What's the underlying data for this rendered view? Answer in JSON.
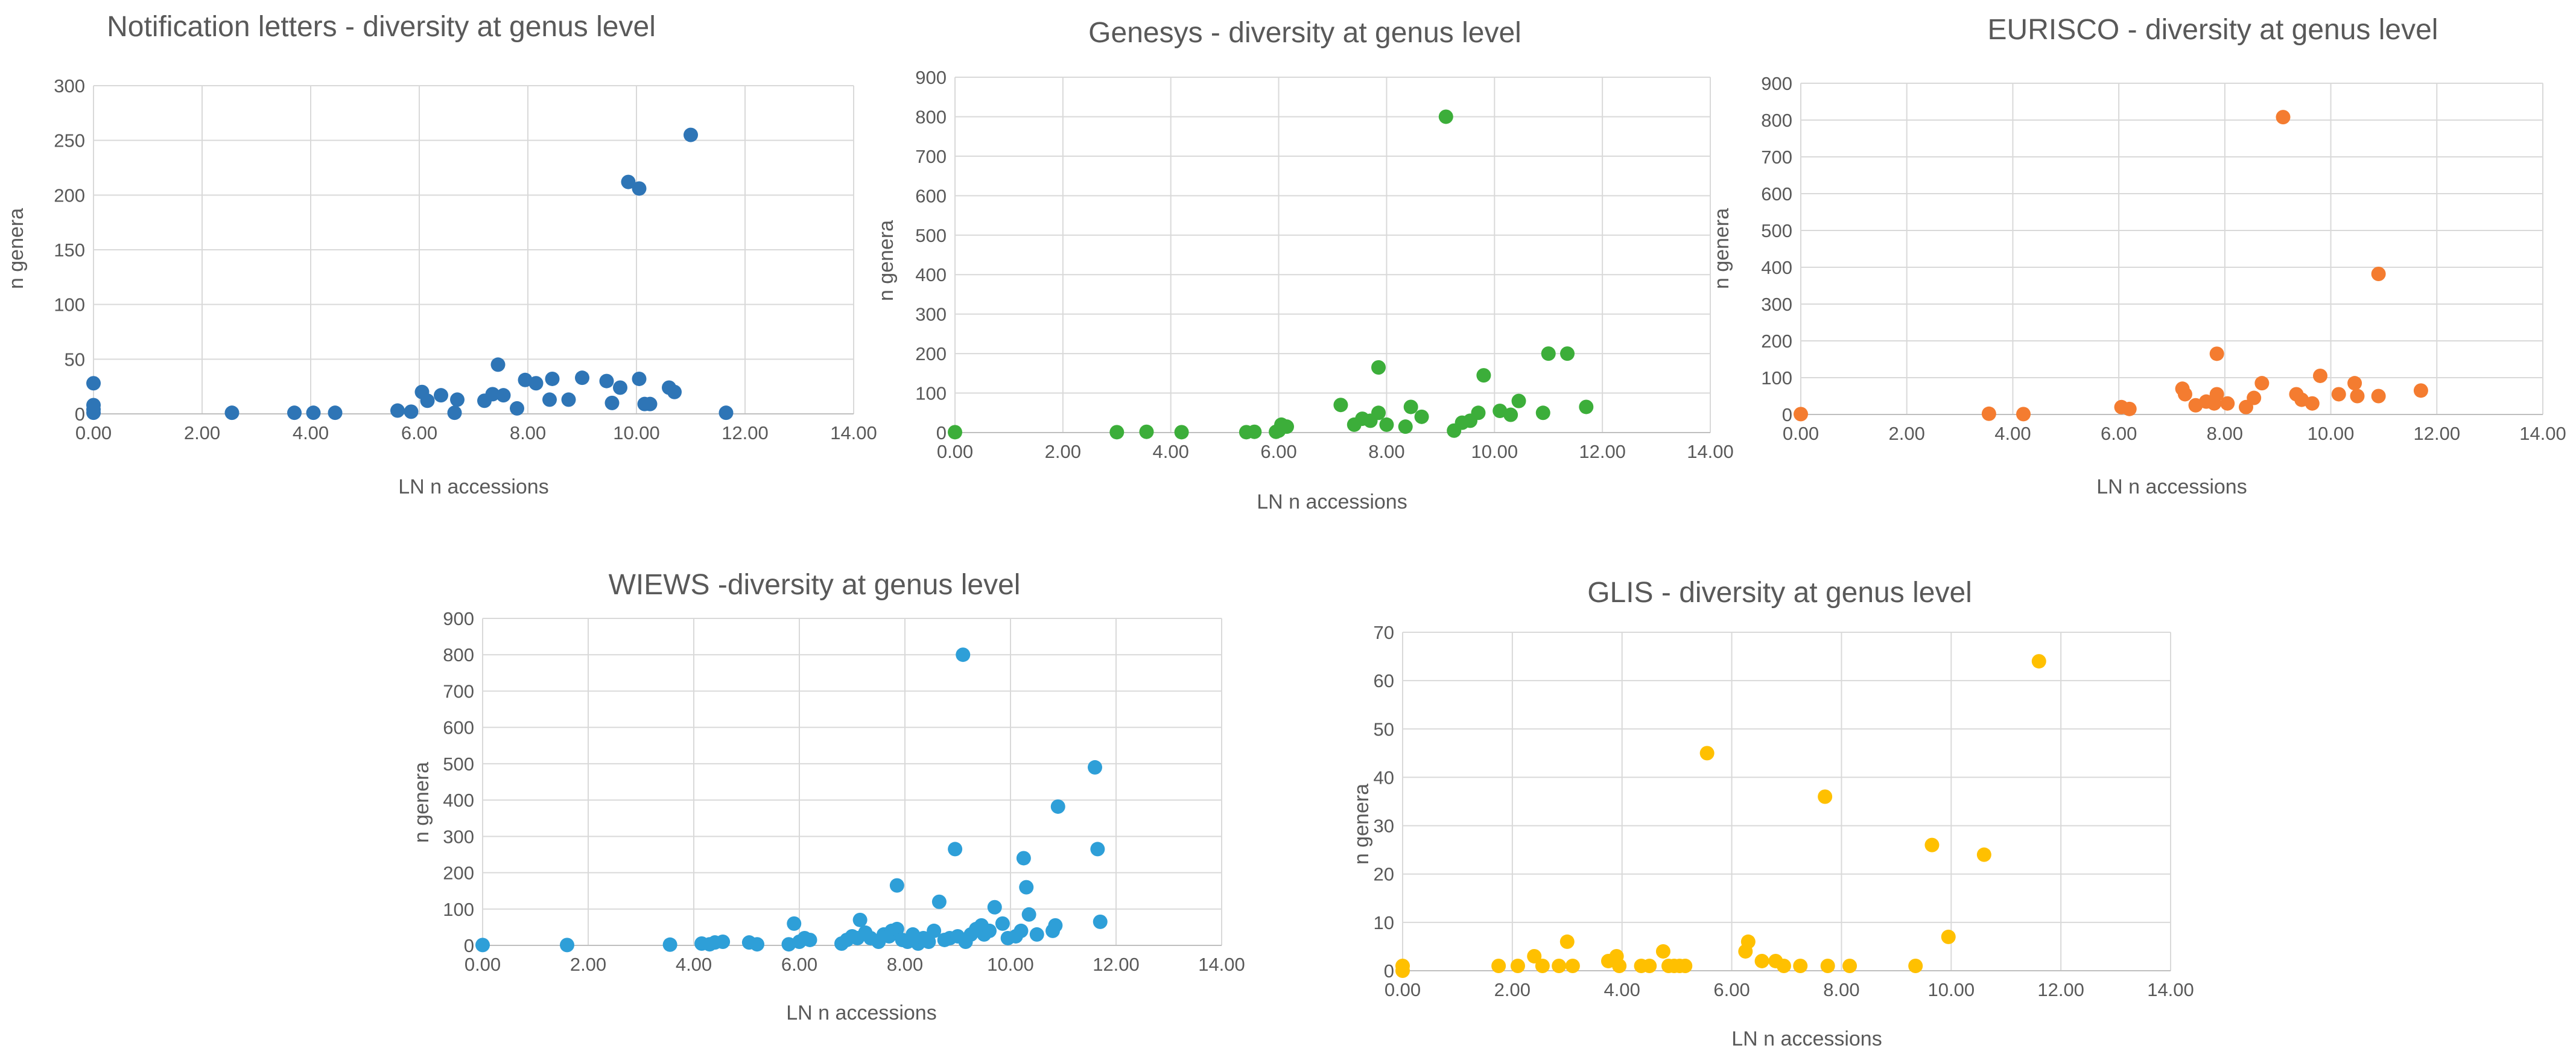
{
  "chart_data": [
    {
      "id": "notification",
      "type": "scatter",
      "title": "Notification letters - diversity at genus level",
      "xlabel": "LN n accessions",
      "ylabel": "n genera",
      "xlim": [
        0,
        14
      ],
      "ylim": [
        0,
        300
      ],
      "xticks": [
        0,
        2,
        4,
        6,
        8,
        10,
        12,
        14
      ],
      "yticks": [
        0,
        50,
        100,
        150,
        200,
        250,
        300
      ],
      "xtick_labels": [
        "0.00",
        "2.00",
        "4.00",
        "6.00",
        "8.00",
        "10.00",
        "12.00",
        "14.00"
      ],
      "ytick_labels": [
        "0",
        "50",
        "100",
        "150",
        "200",
        "250",
        "300"
      ],
      "grid": true,
      "color": "#2e75b6",
      "points": [
        [
          0.0,
          28
        ],
        [
          0.0,
          8
        ],
        [
          0.0,
          4
        ],
        [
          0.0,
          1
        ],
        [
          2.55,
          1
        ],
        [
          3.7,
          1
        ],
        [
          4.05,
          1
        ],
        [
          4.45,
          1
        ],
        [
          5.6,
          3
        ],
        [
          5.85,
          2
        ],
        [
          6.05,
          20
        ],
        [
          6.15,
          12
        ],
        [
          6.4,
          17
        ],
        [
          6.7,
          13
        ],
        [
          6.65,
          1
        ],
        [
          7.2,
          12
        ],
        [
          7.35,
          18
        ],
        [
          7.45,
          45
        ],
        [
          7.55,
          17
        ],
        [
          7.8,
          5
        ],
        [
          7.95,
          31
        ],
        [
          8.15,
          28
        ],
        [
          8.4,
          13
        ],
        [
          8.45,
          32
        ],
        [
          8.75,
          13
        ],
        [
          9.0,
          33
        ],
        [
          9.45,
          30
        ],
        [
          9.55,
          10
        ],
        [
          9.7,
          24
        ],
        [
          9.85,
          212
        ],
        [
          10.05,
          206
        ],
        [
          10.05,
          32
        ],
        [
          10.15,
          9
        ],
        [
          10.25,
          9
        ],
        [
          10.6,
          24
        ],
        [
          10.7,
          20
        ],
        [
          11.0,
          255
        ],
        [
          11.65,
          1
        ]
      ]
    },
    {
      "id": "genesys",
      "type": "scatter",
      "title": "Genesys - diversity at genus level",
      "xlabel": "LN n accessions",
      "ylabel": "n genera",
      "xlim": [
        0,
        14
      ],
      "ylim": [
        0,
        900
      ],
      "xticks": [
        0,
        2,
        4,
        6,
        8,
        10,
        12,
        14
      ],
      "yticks": [
        0,
        100,
        200,
        300,
        400,
        500,
        600,
        700,
        800,
        900
      ],
      "xtick_labels": [
        "0.00",
        "2.00",
        "4.00",
        "6.00",
        "8.00",
        "10.00",
        "12.00",
        "14.00"
      ],
      "ytick_labels": [
        "0",
        "100",
        "200",
        "300",
        "400",
        "500",
        "600",
        "700",
        "800",
        "900"
      ],
      "grid": true,
      "color": "#3cae3a",
      "points": [
        [
          0.0,
          1
        ],
        [
          3.0,
          1
        ],
        [
          3.55,
          2
        ],
        [
          4.2,
          1
        ],
        [
          5.4,
          1
        ],
        [
          5.55,
          2
        ],
        [
          5.95,
          2
        ],
        [
          6.05,
          20
        ],
        [
          6.15,
          15
        ],
        [
          6.0,
          5
        ],
        [
          7.15,
          70
        ],
        [
          7.4,
          20
        ],
        [
          7.55,
          35
        ],
        [
          7.7,
          30
        ],
        [
          7.85,
          50
        ],
        [
          7.85,
          165
        ],
        [
          8.0,
          20
        ],
        [
          8.35,
          15
        ],
        [
          8.45,
          65
        ],
        [
          8.65,
          40
        ],
        [
          9.1,
          800
        ],
        [
          9.25,
          5
        ],
        [
          9.4,
          25
        ],
        [
          9.55,
          30
        ],
        [
          9.7,
          50
        ],
        [
          9.8,
          145
        ],
        [
          10.1,
          55
        ],
        [
          10.3,
          45
        ],
        [
          10.45,
          80
        ],
        [
          10.9,
          50
        ],
        [
          11.0,
          200
        ],
        [
          11.35,
          200
        ],
        [
          11.7,
          65
        ]
      ]
    },
    {
      "id": "eurisco",
      "type": "scatter",
      "title": "EURISCO - diversity at genus level",
      "xlabel": "LN n accessions",
      "ylabel": "n genera",
      "xlim": [
        0,
        14
      ],
      "ylim": [
        0,
        900
      ],
      "xticks": [
        0,
        2,
        4,
        6,
        8,
        10,
        12,
        14
      ],
      "yticks": [
        0,
        100,
        200,
        300,
        400,
        500,
        600,
        700,
        800,
        900
      ],
      "xtick_labels": [
        "0.00",
        "2.00",
        "4.00",
        "6.00",
        "8.00",
        "10.00",
        "12.00",
        "14.00"
      ],
      "ytick_labels": [
        "0",
        "100",
        "200",
        "300",
        "400",
        "500",
        "600",
        "700",
        "800",
        "900"
      ],
      "grid": true,
      "color": "#f47c30",
      "points": [
        [
          0.0,
          1
        ],
        [
          3.55,
          2
        ],
        [
          4.2,
          1
        ],
        [
          6.05,
          20
        ],
        [
          6.2,
          15
        ],
        [
          7.2,
          70
        ],
        [
          7.25,
          55
        ],
        [
          7.45,
          25
        ],
        [
          7.65,
          35
        ],
        [
          7.8,
          30
        ],
        [
          7.85,
          55
        ],
        [
          7.85,
          165
        ],
        [
          8.05,
          30
        ],
        [
          8.4,
          20
        ],
        [
          8.55,
          45
        ],
        [
          8.7,
          85
        ],
        [
          9.1,
          808
        ],
        [
          9.35,
          55
        ],
        [
          9.45,
          40
        ],
        [
          9.65,
          30
        ],
        [
          9.8,
          105
        ],
        [
          10.15,
          55
        ],
        [
          10.45,
          85
        ],
        [
          10.5,
          50
        ],
        [
          10.9,
          382
        ],
        [
          10.9,
          50
        ],
        [
          11.7,
          65
        ]
      ]
    },
    {
      "id": "wiews",
      "type": "scatter",
      "title": "WIEWS -diversity at genus level",
      "xlabel": "LN n accessions",
      "ylabel": "n genera",
      "xlim": [
        0,
        14
      ],
      "ylim": [
        0,
        900
      ],
      "xticks": [
        0,
        2,
        4,
        6,
        8,
        10,
        12,
        14
      ],
      "yticks": [
        0,
        100,
        200,
        300,
        400,
        500,
        600,
        700,
        800,
        900
      ],
      "xtick_labels": [
        "0.00",
        "2.00",
        "4.00",
        "6.00",
        "8.00",
        "10.00",
        "12.00",
        "14.00"
      ],
      "ytick_labels": [
        "0",
        "100",
        "200",
        "300",
        "400",
        "500",
        "600",
        "700",
        "800",
        "900"
      ],
      "grid": true,
      "color": "#2e9fd8",
      "points": [
        [
          0.0,
          1
        ],
        [
          1.6,
          1
        ],
        [
          3.55,
          2
        ],
        [
          4.15,
          5
        ],
        [
          4.3,
          3
        ],
        [
          4.4,
          8
        ],
        [
          4.55,
          10
        ],
        [
          5.05,
          8
        ],
        [
          5.2,
          3
        ],
        [
          5.8,
          3
        ],
        [
          5.9,
          60
        ],
        [
          6.0,
          10
        ],
        [
          6.1,
          20
        ],
        [
          6.2,
          15
        ],
        [
          6.8,
          5
        ],
        [
          6.9,
          15
        ],
        [
          7.0,
          25
        ],
        [
          7.1,
          20
        ],
        [
          7.15,
          70
        ],
        [
          7.25,
          35
        ],
        [
          7.35,
          20
        ],
        [
          7.5,
          10
        ],
        [
          7.6,
          30
        ],
        [
          7.7,
          25
        ],
        [
          7.75,
          40
        ],
        [
          7.85,
          45
        ],
        [
          7.85,
          165
        ],
        [
          7.95,
          15
        ],
        [
          8.05,
          10
        ],
        [
          8.15,
          30
        ],
        [
          8.25,
          5
        ],
        [
          8.35,
          20
        ],
        [
          8.45,
          10
        ],
        [
          8.55,
          40
        ],
        [
          8.65,
          120
        ],
        [
          8.75,
          15
        ],
        [
          8.85,
          20
        ],
        [
          8.95,
          265
        ],
        [
          9.0,
          25
        ],
        [
          9.1,
          800
        ],
        [
          9.15,
          10
        ],
        [
          9.25,
          30
        ],
        [
          9.35,
          45
        ],
        [
          9.45,
          55
        ],
        [
          9.5,
          30
        ],
        [
          9.6,
          40
        ],
        [
          9.7,
          105
        ],
        [
          9.85,
          60
        ],
        [
          9.95,
          20
        ],
        [
          10.1,
          25
        ],
        [
          10.2,
          40
        ],
        [
          10.25,
          240
        ],
        [
          10.3,
          160
        ],
        [
          10.35,
          85
        ],
        [
          10.5,
          30
        ],
        [
          10.8,
          40
        ],
        [
          10.85,
          55
        ],
        [
          10.9,
          382
        ],
        [
          11.6,
          490
        ],
        [
          11.65,
          265
        ],
        [
          11.7,
          65
        ]
      ]
    },
    {
      "id": "glis",
      "type": "scatter",
      "title": "GLIS - diversity at genus level",
      "xlabel": "LN n accessions",
      "ylabel": "n genera",
      "xlim": [
        0,
        14
      ],
      "ylim": [
        0,
        70
      ],
      "xticks": [
        0,
        2,
        4,
        6,
        8,
        10,
        12,
        14
      ],
      "yticks": [
        0,
        10,
        20,
        30,
        40,
        50,
        60,
        70
      ],
      "xtick_labels": [
        "0.00",
        "2.00",
        "4.00",
        "6.00",
        "8.00",
        "10.00",
        "12.00",
        "14.00"
      ],
      "ytick_labels": [
        "0",
        "10",
        "20",
        "30",
        "40",
        "50",
        "60",
        "70"
      ],
      "grid": true,
      "color": "#ffc000",
      "points": [
        [
          0.0,
          1
        ],
        [
          0.0,
          0
        ],
        [
          1.75,
          1
        ],
        [
          2.1,
          1
        ],
        [
          2.4,
          3
        ],
        [
          2.55,
          1
        ],
        [
          2.85,
          1
        ],
        [
          3.0,
          6
        ],
        [
          3.1,
          1
        ],
        [
          3.75,
          2
        ],
        [
          3.9,
          3
        ],
        [
          3.95,
          1
        ],
        [
          4.35,
          1
        ],
        [
          4.5,
          1
        ],
        [
          4.75,
          4
        ],
        [
          4.85,
          1
        ],
        [
          4.95,
          1
        ],
        [
          5.05,
          1
        ],
        [
          5.15,
          1
        ],
        [
          5.55,
          45
        ],
        [
          6.25,
          4
        ],
        [
          6.3,
          6
        ],
        [
          6.55,
          2
        ],
        [
          6.8,
          2
        ],
        [
          6.95,
          1
        ],
        [
          7.25,
          1
        ],
        [
          7.7,
          36
        ],
        [
          7.75,
          1
        ],
        [
          8.15,
          1
        ],
        [
          9.35,
          1
        ],
        [
          9.65,
          26
        ],
        [
          9.95,
          7
        ],
        [
          10.6,
          24
        ],
        [
          11.6,
          64
        ]
      ]
    }
  ]
}
